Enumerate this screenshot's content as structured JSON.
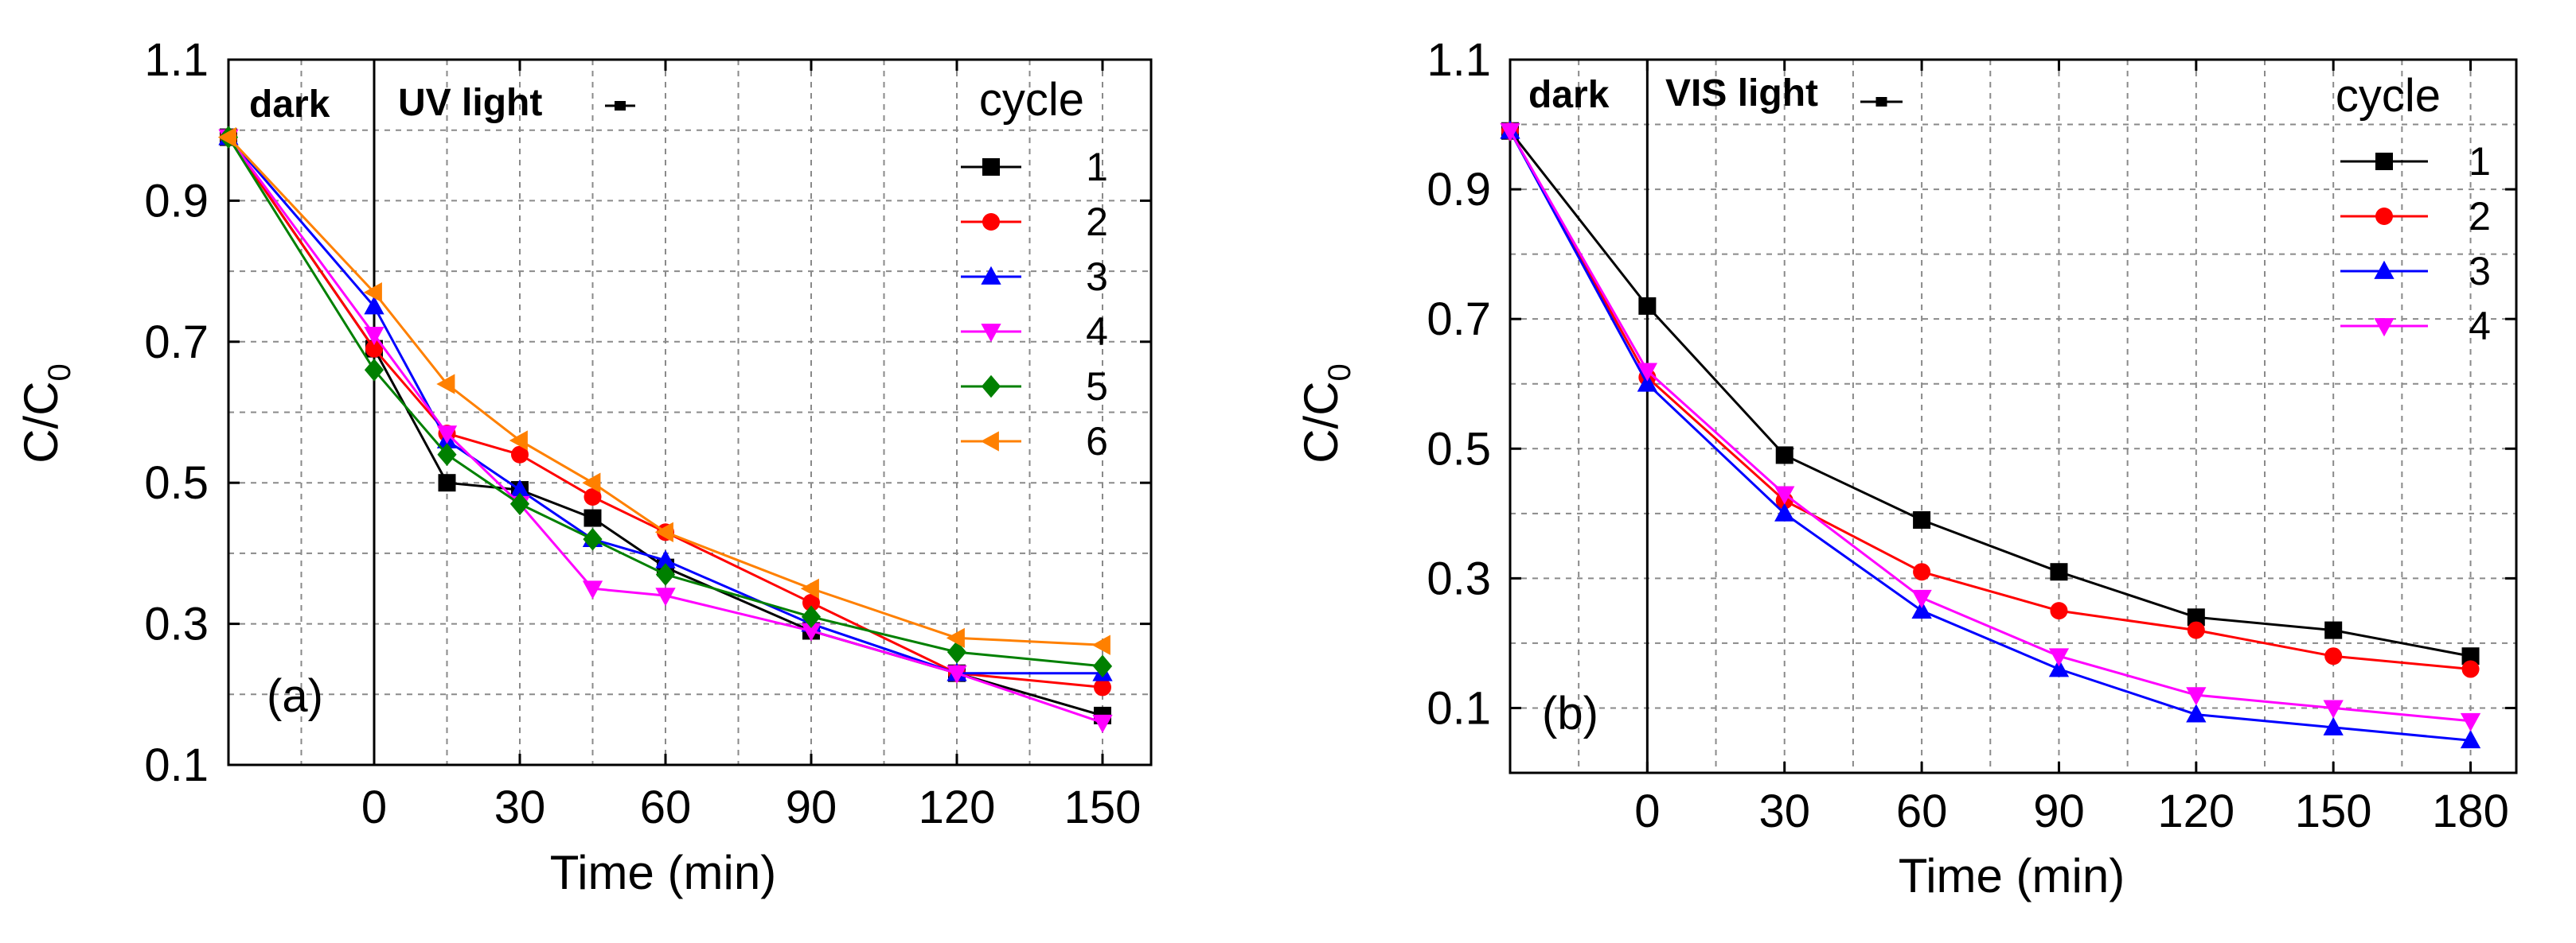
{
  "chart_data": [
    {
      "type": "line",
      "panel_label": "(a)",
      "xlabel": "Time (min)",
      "ylabel": "C/C",
      "ylabel_subscript": "0",
      "xlim": [
        -30,
        160
      ],
      "ylim": [
        0.1,
        1.1
      ],
      "xticks": [
        0,
        30,
        60,
        90,
        120,
        150
      ],
      "xtick_labels": [
        "0",
        "30",
        "60",
        "90",
        "120",
        "150"
      ],
      "yticks": [
        0.1,
        0.3,
        0.5,
        0.7,
        0.9,
        1.1
      ],
      "ytick_labels": [
        "0.1",
        "0.3",
        "0.5",
        "0.7",
        "0.9",
        "1.1"
      ],
      "grid": true,
      "divider_x": 0,
      "annotation_dark": "dark",
      "annotation_light": "UV light",
      "legend_title": "cycle",
      "legend_position": "top-right",
      "x": [
        -30,
        0,
        15,
        30,
        45,
        60,
        90,
        120,
        150
      ],
      "series": [
        {
          "name": "1",
          "color": "#000000",
          "marker": "square",
          "values": [
            0.99,
            0.69,
            0.5,
            0.49,
            0.45,
            0.38,
            0.29,
            0.23,
            0.17
          ]
        },
        {
          "name": "2",
          "color": "#ff0000",
          "marker": "circle",
          "values": [
            0.99,
            0.69,
            0.57,
            0.54,
            0.48,
            0.43,
            0.33,
            0.23,
            0.21
          ]
        },
        {
          "name": "3",
          "color": "#0000ff",
          "marker": "triangle-up",
          "values": [
            0.99,
            0.75,
            0.56,
            0.49,
            0.42,
            0.39,
            0.3,
            0.23,
            0.23
          ]
        },
        {
          "name": "4",
          "color": "#ff00ff",
          "marker": "triangle-down",
          "values": [
            0.99,
            0.71,
            0.57,
            0.47,
            0.35,
            0.34,
            0.29,
            0.23,
            0.16
          ]
        },
        {
          "name": "5",
          "color": "#008000",
          "marker": "diamond",
          "values": [
            0.99,
            0.66,
            0.54,
            0.47,
            0.42,
            0.37,
            0.31,
            0.26,
            0.24
          ]
        },
        {
          "name": "6",
          "color": "#ff8000",
          "marker": "triangle-left",
          "values": [
            0.99,
            0.77,
            0.64,
            0.56,
            0.5,
            0.43,
            0.35,
            0.28,
            0.27
          ]
        }
      ]
    },
    {
      "type": "line",
      "panel_label": "(b)",
      "xlabel": "Time (min)",
      "ylabel": "C/C",
      "ylabel_subscript": "0",
      "xlim": [
        -30,
        190
      ],
      "ylim": [
        0.0,
        1.1
      ],
      "xticks": [
        0,
        30,
        60,
        90,
        120,
        150,
        180
      ],
      "xtick_labels": [
        "0",
        "30",
        "60",
        "90",
        "120",
        "150",
        "180"
      ],
      "yticks": [
        0.1,
        0.3,
        0.5,
        0.7,
        0.9,
        1.1
      ],
      "ytick_labels": [
        "0.1",
        "0.3",
        "0.5",
        "0.7",
        "0.9",
        "1.1"
      ],
      "grid": true,
      "divider_x": 0,
      "annotation_dark": "dark",
      "annotation_light": "VIS light",
      "legend_title": "cycle",
      "legend_position": "top-right",
      "x": [
        -30,
        0,
        30,
        60,
        90,
        120,
        150,
        180
      ],
      "series": [
        {
          "name": "1",
          "color": "#000000",
          "marker": "square",
          "values": [
            0.99,
            0.72,
            0.49,
            0.39,
            0.31,
            0.24,
            0.22,
            0.18
          ]
        },
        {
          "name": "2",
          "color": "#ff0000",
          "marker": "circle",
          "values": [
            0.99,
            0.61,
            0.42,
            0.31,
            0.25,
            0.22,
            0.18,
            0.16
          ]
        },
        {
          "name": "3",
          "color": "#0000ff",
          "marker": "triangle-up",
          "values": [
            0.99,
            0.6,
            0.4,
            0.25,
            0.16,
            0.09,
            0.07,
            0.05
          ]
        },
        {
          "name": "4",
          "color": "#ff00ff",
          "marker": "triangle-down",
          "values": [
            0.99,
            0.62,
            0.43,
            0.27,
            0.18,
            0.12,
            0.1,
            0.08
          ]
        }
      ]
    }
  ]
}
